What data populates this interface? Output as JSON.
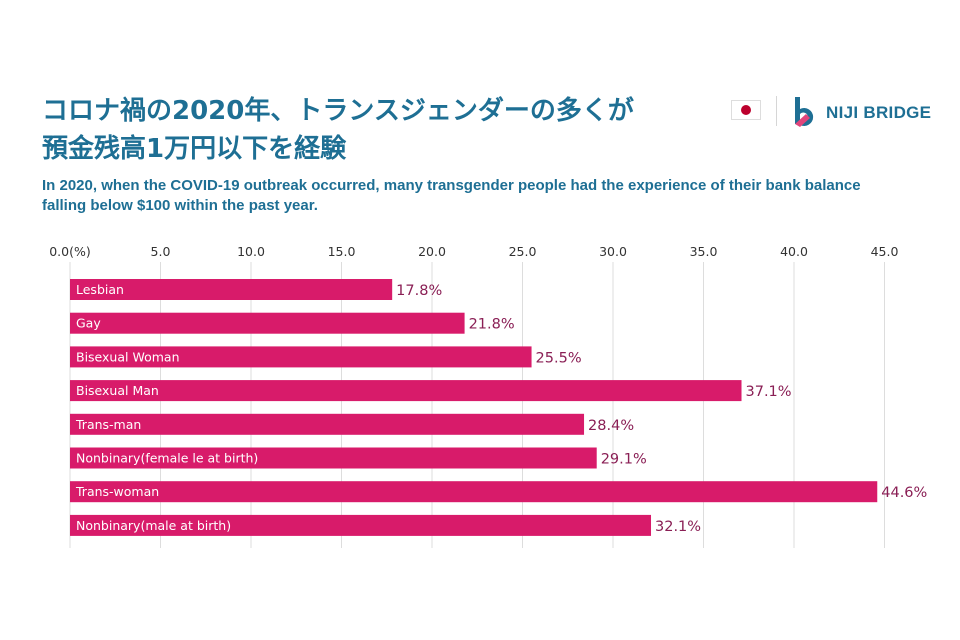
{
  "header": {
    "title_line1": "コロナ禍の2020年、トランスジェンダーの多くが",
    "title_line2": "預金残高1万円以下を経験",
    "subtitle": "In 2020, when the COVID-19 outbreak occurred, many transgender people had the experience of their bank balance falling below $100 within the past year.",
    "flag_icon": "japan-flag-icon",
    "logo_icon": "niji-bridge-logo-icon",
    "logo_text": "NIJI BRIDGE"
  },
  "colors": {
    "bar": "#d81b6a",
    "value_text": "#8a1f55",
    "title": "#1e6f94",
    "grid": "#dddddd",
    "logo_pink": "#e0457b",
    "logo_blue": "#1e6f94"
  },
  "chart_data": {
    "type": "bar",
    "orientation": "horizontal",
    "categories": [
      "Lesbian",
      "Gay",
      "Bisexual Woman",
      "Bisexual Man",
      "Trans-man",
      "Nonbinary(female le at birth)",
      "Trans-woman",
      "Nonbinary(male at birth)"
    ],
    "values": [
      17.8,
      21.8,
      25.5,
      37.1,
      28.4,
      29.1,
      44.6,
      32.1
    ],
    "value_labels": [
      "17.8%",
      "21.8%",
      "25.5%",
      "37.1%",
      "28.4%",
      "29.1%",
      "44.6%",
      "32.1%"
    ],
    "ticks": [
      0,
      5,
      10,
      15,
      20,
      25,
      30,
      35,
      40,
      45
    ],
    "tick_labels": [
      "0.0(%)",
      "5.0",
      "10.0",
      "15.0",
      "20.0",
      "25.0",
      "30.0",
      "35.0",
      "40.0",
      "45.0"
    ],
    "xlim": [
      0,
      45
    ],
    "axis_position": "top",
    "grid": true,
    "legend": "none"
  }
}
